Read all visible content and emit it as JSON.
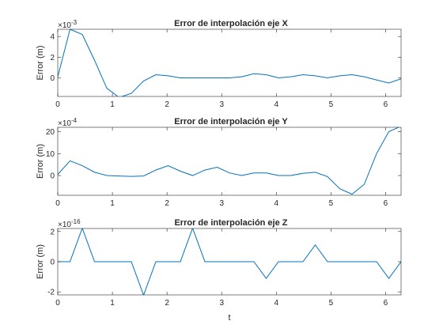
{
  "figure": {
    "xlabel": "t"
  },
  "chart_data": [
    {
      "type": "line",
      "title": "Error de interpolación eje X",
      "ylabel": "Error (m)",
      "exponent_base": "×10",
      "exponent_power": "-3",
      "scale": 0.001,
      "xlim": [
        0,
        6.2832
      ],
      "ylim": [
        -0.0018,
        0.0047
      ],
      "xticks": [
        0,
        1,
        2,
        3,
        4,
        5,
        6
      ],
      "yticks": [
        0,
        0.002,
        0.004
      ],
      "ytick_labels": [
        "0",
        "2",
        "4"
      ],
      "color": "#0072BD",
      "series": [
        {
          "x": [
            0,
            0.2244,
            0.4488,
            0.6732,
            0.8976,
            1.122,
            1.3464,
            1.5708,
            1.7952,
            2.0196,
            2.244,
            2.4684,
            2.6928,
            2.9172,
            3.1416,
            3.366,
            3.5904,
            3.8148,
            4.0392,
            4.2636,
            4.488,
            4.7124,
            4.9368,
            5.1612,
            5.3856,
            5.61,
            5.8344,
            6.0588,
            6.2832
          ],
          "y": [
            0.0001,
            0.0047,
            0.0042,
            0.0017,
            -0.001,
            -0.0019,
            -0.0015,
            -0.0003,
            0.0003,
            0.0002,
            0.0,
            0.0,
            0.0,
            0.0,
            0.0,
            0.0001,
            0.0004,
            0.0003,
            0.0,
            0.0001,
            0.0003,
            0.0002,
            0.0,
            0.0002,
            0.0003,
            0.0001,
            -0.0002,
            -0.0005,
            -0.0001
          ]
        }
      ]
    },
    {
      "type": "line",
      "title": "Error de interpolación eje Y",
      "ylabel": "Error (m)",
      "exponent_base": "×10",
      "exponent_power": "-4",
      "scale": 0.0001,
      "xlim": [
        0,
        6.2832
      ],
      "ylim": [
        -0.0009,
        0.0022
      ],
      "xticks": [
        0,
        1,
        2,
        3,
        4,
        5,
        6
      ],
      "yticks": [
        0,
        0.001,
        0.002
      ],
      "ytick_labels": [
        "0",
        "10",
        "20"
      ],
      "color": "#0072BD",
      "series": [
        {
          "x": [
            0,
            0.2244,
            0.4488,
            0.6732,
            0.8976,
            1.122,
            1.3464,
            1.5708,
            1.7952,
            2.0196,
            2.244,
            2.4684,
            2.6928,
            2.9172,
            3.1416,
            3.366,
            3.5904,
            3.8148,
            4.0392,
            4.2636,
            4.488,
            4.7124,
            4.9368,
            5.1612,
            5.3856,
            5.61,
            5.8344,
            6.0588,
            6.2832
          ],
          "y": [
            5e-05,
            0.00067,
            0.00045,
            0.00015,
            0.0,
            -2e-05,
            -4e-05,
            -2e-05,
            0.00025,
            0.00045,
            0.0002,
            0.0,
            0.00025,
            0.00038,
            0.00012,
            0.0,
            0.00012,
            0.00012,
            0.0,
            0.0,
            0.0001,
            0.00015,
            -5e-05,
            -0.0006,
            -0.00085,
            -0.0004,
            0.001,
            0.002,
            0.00225
          ]
        }
      ]
    },
    {
      "type": "line",
      "title": "Error de interpolación eje Z",
      "ylabel": "Error (m)",
      "exponent_base": "×10",
      "exponent_power": "-16",
      "scale": 1e-16,
      "xlim": [
        0,
        6.2832
      ],
      "ylim": [
        -2.2e-16,
        2.2e-16
      ],
      "xticks": [
        0,
        1,
        2,
        3,
        4,
        5,
        6
      ],
      "yticks": [
        -2e-16,
        0,
        2e-16
      ],
      "ytick_labels": [
        "-2",
        "0",
        "2"
      ],
      "color": "#0072BD",
      "series": [
        {
          "x": [
            0,
            0.2244,
            0.4488,
            0.6732,
            0.8976,
            1.122,
            1.3464,
            1.5708,
            1.7952,
            2.0196,
            2.244,
            2.4684,
            2.6928,
            2.9172,
            3.1416,
            3.366,
            3.5904,
            3.8148,
            4.0392,
            4.2636,
            4.488,
            4.7124,
            4.9368,
            5.1612,
            5.3856,
            5.61,
            5.8344,
            6.0588,
            6.2832
          ],
          "y": [
            0,
            0,
            2.22e-16,
            0,
            0,
            0,
            0,
            -2.22e-16,
            0,
            0,
            0,
            2.22e-16,
            0,
            0,
            0,
            0,
            0,
            -1.11e-16,
            0,
            0,
            0,
            1.11e-16,
            0,
            0,
            0,
            0,
            0,
            -1.11e-16,
            0
          ]
        }
      ]
    }
  ]
}
